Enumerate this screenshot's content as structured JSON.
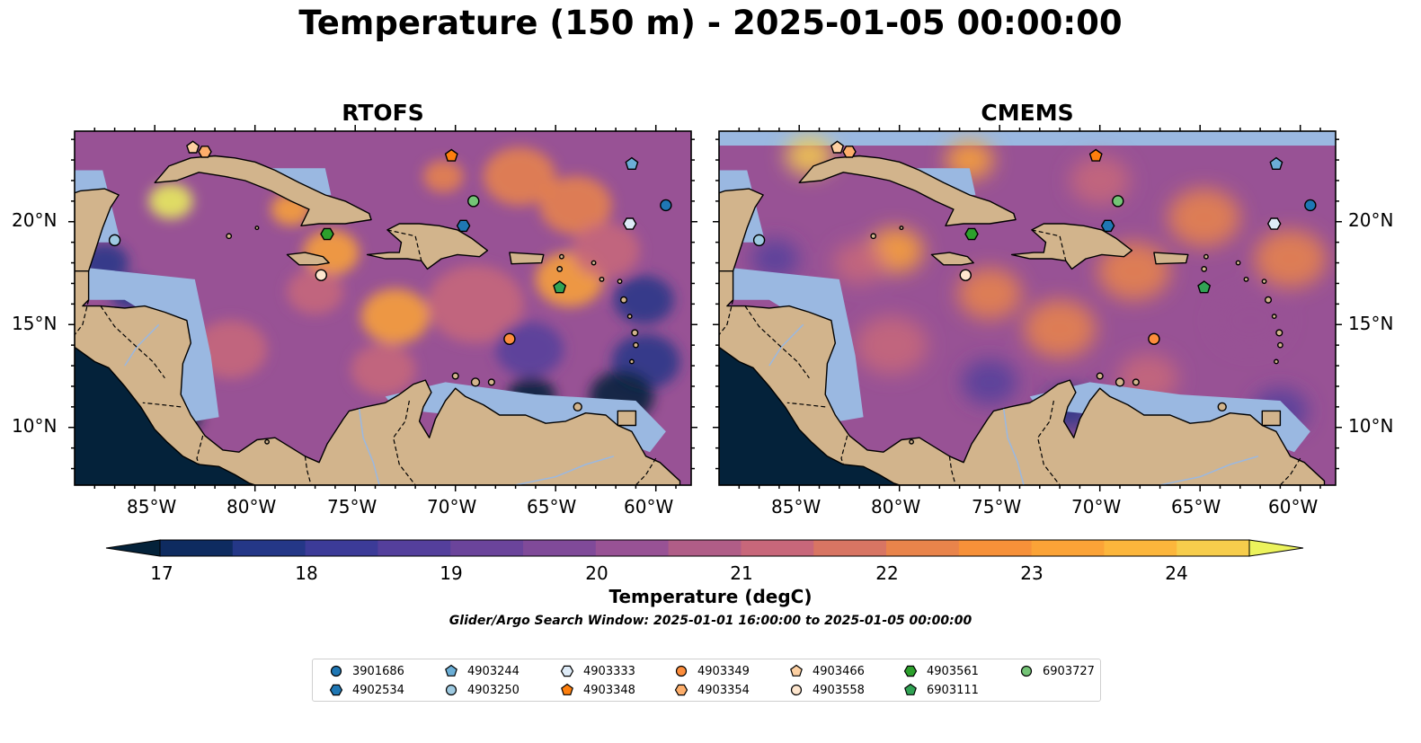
{
  "title": "Temperature (150 m) - 2025-01-05 00:00:00",
  "panels": [
    {
      "title": "RTOFS"
    },
    {
      "title": "CMEMS"
    }
  ],
  "axes": {
    "lon_ticks": [
      "85°W",
      "80°W",
      "75°W",
      "70°W",
      "65°W",
      "60°W"
    ],
    "lat_ticks": [
      "20°N",
      "15°N",
      "10°N"
    ]
  },
  "colorbar": {
    "label": "Temperature (degC)",
    "tick_labels": [
      "17",
      "18",
      "19",
      "20",
      "21",
      "22",
      "23",
      "24"
    ],
    "range": [
      16.75,
      24.5
    ],
    "extend": "both",
    "colors": [
      "#04223a",
      "#0e2b60",
      "#243787",
      "#3c3b98",
      "#543f9c",
      "#6b449b",
      "#804a99",
      "#985295",
      "#b05d87",
      "#c8677a",
      "#d87563",
      "#e9844b",
      "#f79139",
      "#fba337",
      "#fcb63c",
      "#f7cd4c",
      "#ecf35c"
    ]
  },
  "search_window": "Glider/Argo Search Window: 2025-01-01 16:00:00 to 2025-01-05 00:00:00",
  "land_color": "#d2b48c",
  "shallow_color": "#9ab8e1",
  "floats": [
    {
      "id": "3901686",
      "marker": "circle",
      "color": "#1f77b4",
      "lon": -59.5,
      "lat": 20.8
    },
    {
      "id": "4902534",
      "marker": "hexagon",
      "color": "#1f77b4",
      "lon": -69.6,
      "lat": 19.8
    },
    {
      "id": "4903244",
      "marker": "pentagon",
      "color": "#6baed6",
      "lon": -61.2,
      "lat": 22.8
    },
    {
      "id": "4903250",
      "marker": "circle",
      "color": "#9ecae1",
      "lon": -87.0,
      "lat": 19.1
    },
    {
      "id": "4903333",
      "marker": "hexagon",
      "color": "#deebf7",
      "lon": -61.3,
      "lat": 19.9
    },
    {
      "id": "4903348",
      "marker": "pentagon",
      "color": "#fd7f0e",
      "lon": -70.2,
      "lat": 23.2
    },
    {
      "id": "4903349",
      "marker": "circle",
      "color": "#fd8d3c",
      "lon": -67.3,
      "lat": 14.3
    },
    {
      "id": "4903354",
      "marker": "hexagon",
      "color": "#fdae6b",
      "lon": -82.5,
      "lat": 23.4
    },
    {
      "id": "4903466",
      "marker": "pentagon",
      "color": "#fdd0a2",
      "lon": -83.1,
      "lat": 23.6
    },
    {
      "id": "4903558",
      "marker": "circle",
      "color": "#fee6ce",
      "lon": -76.7,
      "lat": 17.4
    },
    {
      "id": "4903561",
      "marker": "hexagon",
      "color": "#2ca02c",
      "lon": -76.4,
      "lat": 19.4
    },
    {
      "id": "6903111",
      "marker": "pentagon",
      "color": "#31a354",
      "lon": -64.8,
      "lat": 16.8
    },
    {
      "id": "6903727",
      "marker": "circle",
      "color": "#74c476",
      "lon": -69.1,
      "lat": 21.0
    }
  ]
}
